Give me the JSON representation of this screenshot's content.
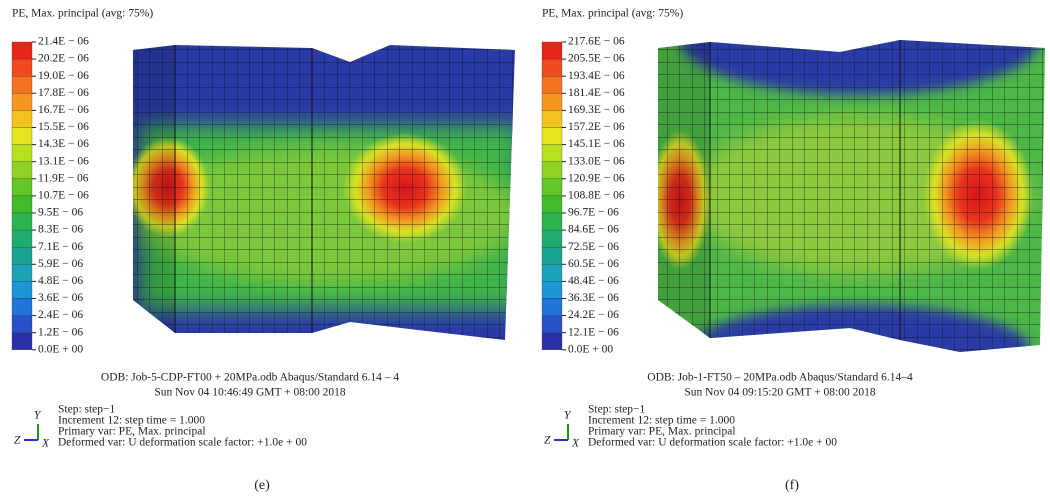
{
  "panels": [
    {
      "title": "PE, Max. principal (avg: 75%)",
      "legend": [
        "21.4E − 06",
        "20.2E − 06",
        "19.0E − 06",
        "17.8E − 06",
        "16.7E − 06",
        "15.5E − 06",
        "14.3E − 06",
        "13.1E − 06",
        "11.9E − 06",
        "10.7E − 06",
        "9.5E − 06",
        "8.3E − 06",
        "7.1E − 06",
        "5.9E − 06",
        "4.8E − 06",
        "3.6E − 06",
        "2.4E − 06",
        "1.2E − 06",
        "0.0E + 00"
      ],
      "odb": [
        "ODB: Job-5-CDP-FT00 + 20MPa.odb Abaqus/Standard 6.14 – 4",
        "Sun Nov 04 10:46:49 GMT + 08:00 2018"
      ],
      "step": [
        "Step: step−1",
        "Increment 12: step time = 1.000",
        "Primary var: PE, Max. principal",
        "Deformed var: U deformation scale factor: +1.0e + 00"
      ],
      "axes": {
        "y": "Y",
        "z": "Z",
        "x": "X"
      },
      "caption": "(e)"
    },
    {
      "title": "PE, Max. principal (avg: 75%)",
      "legend": [
        "217.6E − 06",
        "205.5E − 06",
        "193.4E − 06",
        "181.4E − 06",
        "169.3E − 06",
        "157.2E − 06",
        "145.1E − 06",
        "133.0E − 06",
        "120.9E − 06",
        "108.8E − 06",
        "96.7E − 06",
        "84.6E − 06",
        "72.5E − 06",
        "60.5E − 06",
        "48.4E − 06",
        "36.3E − 06",
        "24.2E − 06",
        "12.1E − 06",
        "0.0E + 00"
      ],
      "odb": [
        "ODB: Job-1-FT50 – 20MPa.odb Abaqus/Standard 6.14–4",
        "Sun Nov 04 09:15:20 GMT + 08:00 2018"
      ],
      "step": [
        "Step: step−1",
        "Increment 12: step time = 1.000",
        "Primary var: PE, Max. principal",
        "Deformed var: U deformation scale factor: +1.0e + 00"
      ],
      "axes": {
        "y": "Y",
        "z": "Z",
        "x": "X"
      },
      "caption": "(f)"
    }
  ]
}
